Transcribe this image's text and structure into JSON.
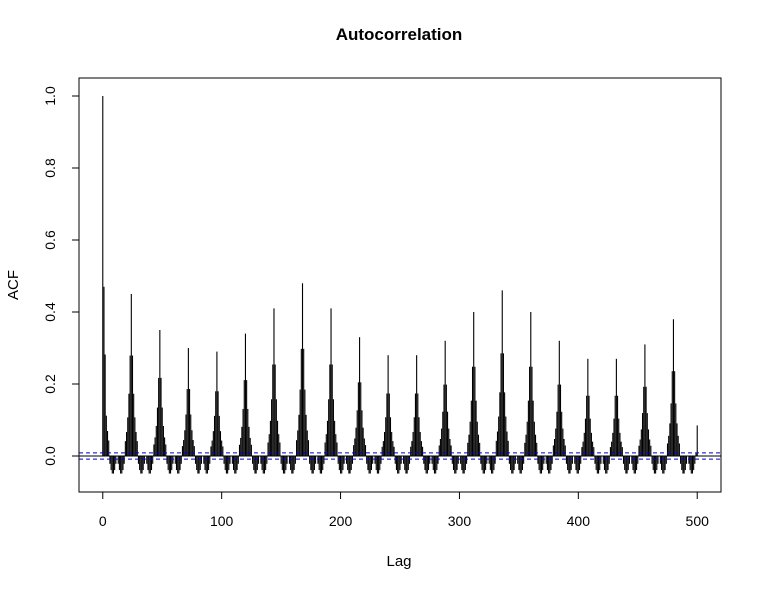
{
  "chart_data": {
    "type": "bar",
    "title": "Autocorrelation",
    "xlabel": "Lag",
    "ylabel": "ACF",
    "xlim": [
      -20,
      520
    ],
    "ylim": [
      -0.1,
      1.05
    ],
    "x_ticks": [
      0,
      100,
      200,
      300,
      400,
      500
    ],
    "x_tick_labels": [
      "0",
      "100",
      "200",
      "300",
      "400",
      "500"
    ],
    "y_ticks": [
      0.0,
      0.2,
      0.4,
      0.6,
      0.8,
      1.0
    ],
    "y_tick_labels": [
      "0.0",
      "0.2",
      "0.4",
      "0.6",
      "0.8",
      "1.0"
    ],
    "max_lag": 500,
    "period": 24,
    "lag0_value": 1.0,
    "seasonal_peaks": [
      {
        "lag": 1,
        "acf": 0.47
      },
      {
        "lag": 24,
        "acf": 0.45
      },
      {
        "lag": 48,
        "acf": 0.35
      },
      {
        "lag": 72,
        "acf": 0.3
      },
      {
        "lag": 96,
        "acf": 0.29
      },
      {
        "lag": 120,
        "acf": 0.34
      },
      {
        "lag": 144,
        "acf": 0.41
      },
      {
        "lag": 168,
        "acf": 0.48
      },
      {
        "lag": 192,
        "acf": 0.41
      },
      {
        "lag": 216,
        "acf": 0.33
      },
      {
        "lag": 240,
        "acf": 0.28
      },
      {
        "lag": 264,
        "acf": 0.28
      },
      {
        "lag": 288,
        "acf": 0.32
      },
      {
        "lag": 312,
        "acf": 0.4
      },
      {
        "lag": 336,
        "acf": 0.46
      },
      {
        "lag": 360,
        "acf": 0.4
      },
      {
        "lag": 384,
        "acf": 0.32
      },
      {
        "lag": 408,
        "acf": 0.27
      },
      {
        "lag": 432,
        "acf": 0.27
      },
      {
        "lag": 456,
        "acf": 0.31
      },
      {
        "lag": 480,
        "acf": 0.38
      },
      {
        "lag": 500,
        "acf": 0.085
      }
    ],
    "trough_value": -0.05,
    "confidence_bound": 0.0087,
    "colors": {
      "bars": "#000000",
      "axis": "#000000",
      "zero_line": "#000000",
      "confidence": "#0000cc"
    },
    "grid": false,
    "legend": "none"
  }
}
